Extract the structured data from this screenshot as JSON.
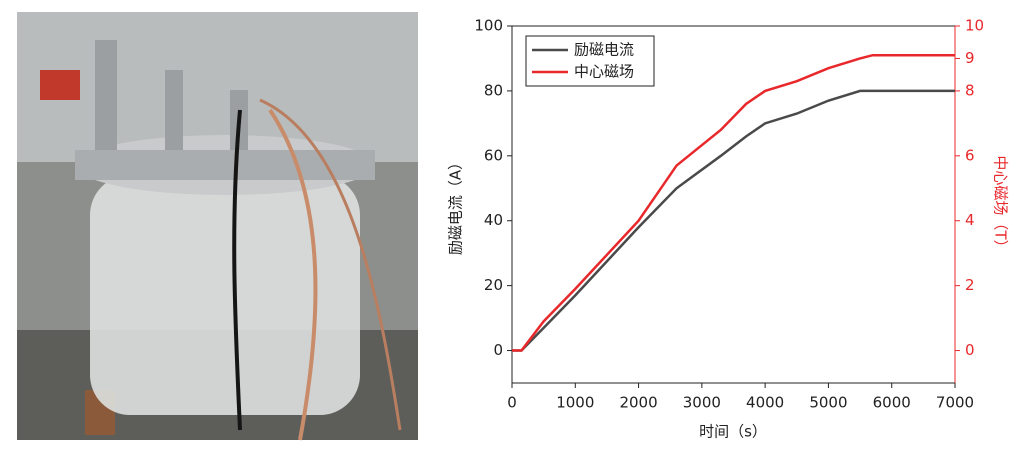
{
  "chart_data": {
    "type": "line",
    "xlabel": "时间（s）",
    "ylabel": "励磁电流（A）",
    "y2label": "中心磁场（T）",
    "x": [
      0,
      150,
      500,
      1000,
      2000,
      2600,
      3300,
      3700,
      4000,
      4500,
      5000,
      5500,
      5700,
      6000,
      7000
    ],
    "series": [
      {
        "name": "励磁电流",
        "color": "#4a4a4a",
        "values": [
          0,
          0,
          7,
          17,
          38,
          50,
          60,
          66,
          70,
          73,
          77,
          80,
          80,
          80,
          80
        ]
      },
      {
        "name": "中心磁场",
        "color": "#e8282b",
        "axis": "y2",
        "values": [
          0,
          0,
          0.9,
          1.9,
          4.0,
          5.7,
          6.8,
          7.6,
          8.0,
          8.3,
          8.7,
          9.0,
          9.1,
          9.1,
          9.1
        ]
      }
    ],
    "xlim": [
      0,
      7000
    ],
    "xticks": [
      0,
      1000,
      2000,
      3000,
      4000,
      5000,
      6000,
      7000
    ],
    "ylim": [
      -10,
      100
    ],
    "yticks": [
      0,
      20,
      40,
      60,
      80,
      100
    ],
    "y2lim": [
      -1,
      10
    ],
    "y2ticks": [
      0,
      2,
      4,
      6,
      8,
      9,
      10
    ],
    "legend": "upper left",
    "y2color": "#e8282b"
  }
}
